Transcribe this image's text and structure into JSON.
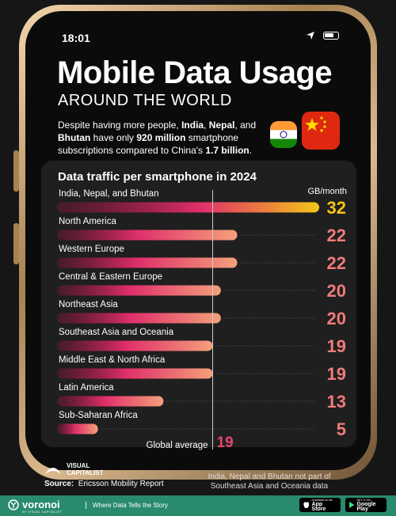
{
  "status": {
    "time": "18:01"
  },
  "header": {
    "title": "Mobile Data Usage",
    "subtitle": "AROUND THE WORLD",
    "intro": {
      "p1": "Despite having more people, ",
      "b1": "India",
      "p2": ", ",
      "b2": "Nepal",
      "p3": ", and ",
      "b3": "Bhutan",
      "p4": " have only ",
      "b4": "920 million",
      "p5": " smartphone subscriptions compared to China's ",
      "b5": "1.7 billion",
      "p6": "."
    }
  },
  "chart_data": {
    "type": "bar",
    "title": "Data traffic per smartphone in 2024",
    "unit": "GB/month",
    "categories": [
      "India, Nepal, and Bhutan",
      "North America",
      "Western Europe",
      "Central & Eastern Europe",
      "Northeast Asia",
      "Southeast Asia and Oceania",
      "Middle East & North Africa",
      "Latin America",
      "Sub-Saharan Africa"
    ],
    "values": [
      32,
      22,
      22,
      20,
      20,
      19,
      19,
      13,
      5
    ],
    "xlim": [
      0,
      32
    ],
    "reference": {
      "label": "Global average",
      "value": 19
    },
    "colors": {
      "high": "#f5c518",
      "bar_start": "#b3124a",
      "bar_end": "#f4a07a",
      "value_label": "#f07a7a",
      "reference_value": "#e8456f"
    }
  },
  "footer": {
    "brand": "VISUAL CAPITALIST",
    "source_label": "Source:",
    "source_text": "Ericsson Mobility Report",
    "note": "India, Nepal and Bhutan not part of Southeast Asia and Oceania data",
    "voronoi": "voronoi",
    "voronoi_sub": "BY VISUAL CAPITALIST",
    "tagline": "Where Data Tells the Story",
    "app_store": "App Store",
    "app_store_small": "Download on the",
    "google_play": "Google Play",
    "google_play_small": "GET IT ON"
  }
}
